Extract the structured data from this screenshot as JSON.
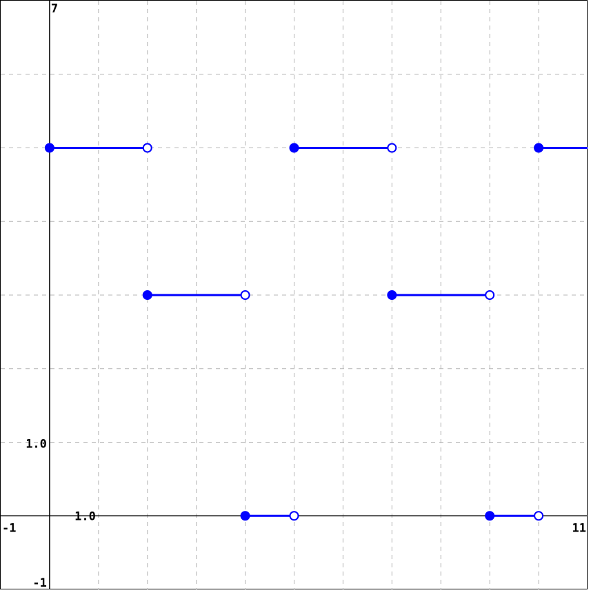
{
  "chart_data": {
    "type": "line",
    "title": "",
    "xlabel": "",
    "ylabel": "",
    "xlim": [
      -1,
      11
    ],
    "ylim": [
      -1,
      7
    ],
    "grid": true,
    "grid_step": 1,
    "axis_labels": {
      "x_min": "-1",
      "x_max": "11",
      "y_min": "-1",
      "y_max": "7",
      "x_unit": "1.0",
      "y_unit": "1.0"
    },
    "series": [
      {
        "style": "step",
        "segments": [
          {
            "x_start": 0,
            "x_end": 2,
            "y": 5,
            "start_closed": true,
            "end_closed": false
          },
          {
            "x_start": 2,
            "x_end": 4,
            "y": 3,
            "start_closed": true,
            "end_closed": false
          },
          {
            "x_start": 4,
            "x_end": 5,
            "y": 0,
            "start_closed": true,
            "end_closed": false
          },
          {
            "x_start": 5,
            "x_end": 7,
            "y": 5,
            "start_closed": true,
            "end_closed": false
          },
          {
            "x_start": 7,
            "x_end": 9,
            "y": 3,
            "start_closed": true,
            "end_closed": false
          },
          {
            "x_start": 9,
            "x_end": 10,
            "y": 0,
            "start_closed": true,
            "end_closed": false
          },
          {
            "x_start": 10,
            "x_end": 11,
            "y": 5,
            "start_closed": true,
            "end_closed": null
          }
        ]
      }
    ],
    "colors": {
      "series": "#0000ff",
      "axis": "#000000",
      "grid": "#b4b4b4",
      "background": "#ffffff"
    }
  }
}
